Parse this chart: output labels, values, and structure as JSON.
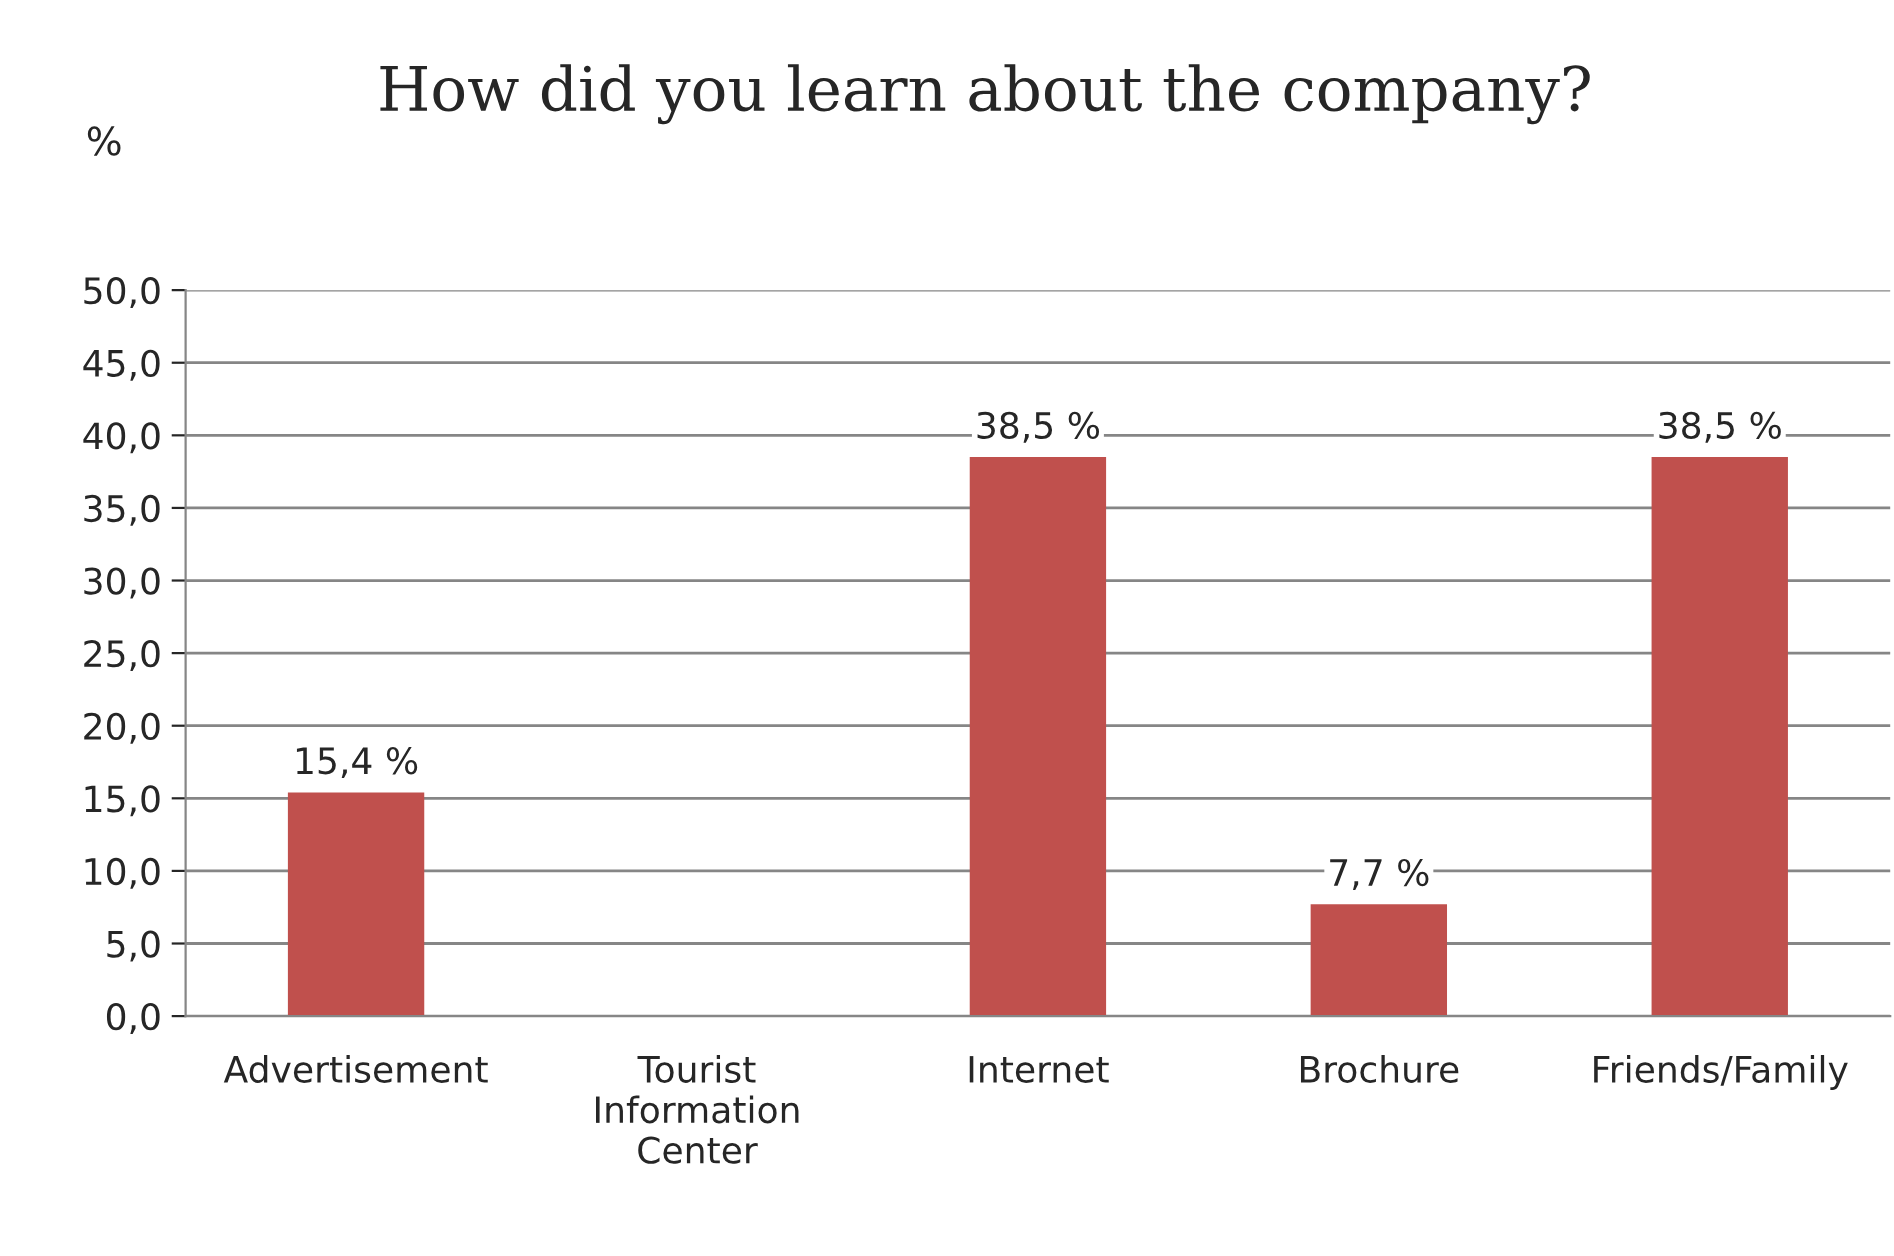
{
  "chart_data": {
    "type": "bar",
    "title": "How did you learn about the company?",
    "ylabel": "%",
    "categories": [
      "Advertisement",
      "Tourist Information Center",
      "Internet",
      "Brochure",
      "Friends/Family"
    ],
    "values": [
      15.4,
      0,
      38.5,
      7.7,
      38.5
    ],
    "value_labels": [
      "15,4 %",
      null,
      "38,5 %",
      "7,7 %",
      "38,5 %"
    ],
    "color": "#c0504d",
    "ylim": [
      0,
      50
    ],
    "yticks": [
      {
        "value": 0,
        "label": "0,0"
      },
      {
        "value": 5,
        "label": "5,0"
      },
      {
        "value": 10,
        "label": "10,0"
      },
      {
        "value": 15,
        "label": "15,0"
      },
      {
        "value": 20,
        "label": "20,0"
      },
      {
        "value": 25,
        "label": "25,0"
      },
      {
        "value": 30,
        "label": "30,0"
      },
      {
        "value": 35,
        "label": "35,0"
      },
      {
        "value": 40,
        "label": "40,0"
      },
      {
        "value": 45,
        "label": "45,0"
      },
      {
        "value": 50,
        "label": "50,0"
      }
    ],
    "grid": "y",
    "legend": false
  }
}
